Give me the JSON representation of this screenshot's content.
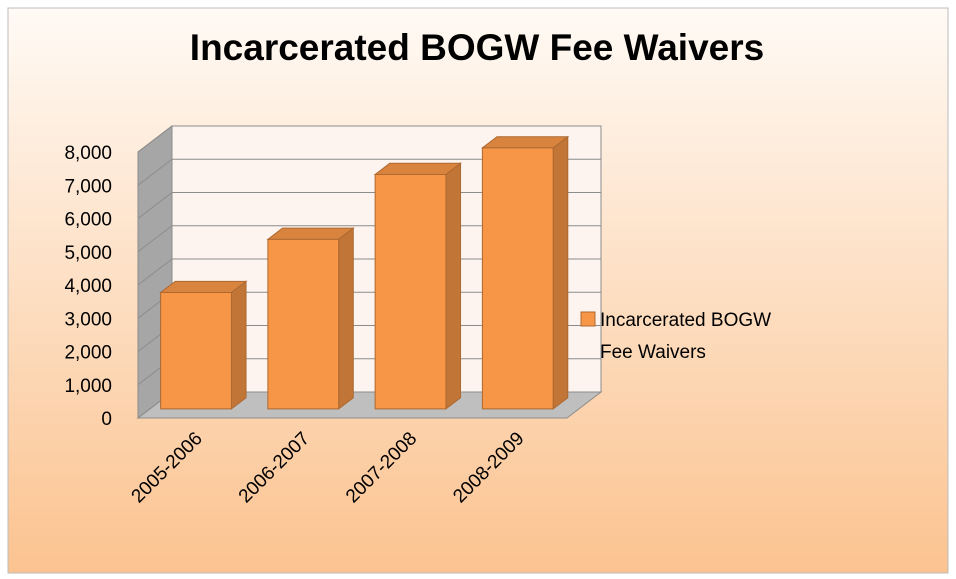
{
  "chart_data": {
    "type": "bar3d",
    "title": "Incarcerated BOGW Fee Waivers",
    "categories": [
      "2005-2006",
      "2006-2007",
      "2007-2008",
      "2008-2009"
    ],
    "series": [
      {
        "name": "Incarcerated BOGW Fee Waivers",
        "color": "#f79646",
        "values": [
          3500,
          5100,
          7050,
          7850
        ]
      }
    ],
    "ylim": [
      0,
      8000
    ],
    "yticks": [
      0,
      {
        "value": 1000,
        "label": "1,000"
      },
      {
        "value": 2000,
        "label": "2,000"
      },
      {
        "value": 3000,
        "label": "3,000"
      },
      {
        "value": 4000,
        "label": "4,000"
      },
      {
        "value": 5000,
        "label": "5,000"
      },
      {
        "value": 6000,
        "label": "6,000"
      },
      {
        "value": 7000,
        "label": "7,000"
      },
      {
        "value": 8000,
        "label": "8,000"
      }
    ],
    "grid": true,
    "legend": "right"
  }
}
